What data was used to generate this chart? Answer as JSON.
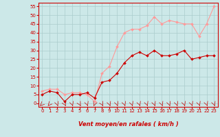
{
  "x": [
    0,
    1,
    2,
    3,
    4,
    5,
    6,
    7,
    8,
    9,
    10,
    11,
    12,
    13,
    14,
    15,
    16,
    17,
    18,
    19,
    20,
    21,
    22,
    23
  ],
  "wind_avg": [
    5,
    7,
    6,
    1,
    5,
    5,
    6,
    3,
    12,
    13,
    17,
    23,
    27,
    29,
    27,
    30,
    27,
    27,
    28,
    30,
    25,
    26,
    27,
    27
  ],
  "wind_gust": [
    7,
    8,
    8,
    5,
    6,
    6,
    5,
    1,
    17,
    21,
    32,
    40,
    42,
    42,
    44,
    49,
    45,
    47,
    46,
    45,
    45,
    38,
    45,
    55
  ],
  "avg_color": "#cc0000",
  "gust_color": "#ff9999",
  "bg_color": "#cce8e8",
  "grid_color": "#aacccc",
  "xlabel": "Vent moyen/en rafales ( km/h )",
  "xlabel_color": "#cc0000",
  "yticks": [
    0,
    5,
    10,
    15,
    20,
    25,
    30,
    35,
    40,
    45,
    50,
    55
  ],
  "ylim": [
    -2,
    57
  ],
  "xlim": [
    -0.5,
    23.5
  ],
  "markersize": 2.0,
  "linewidth": 0.8,
  "tick_fontsize": 5.0,
  "xlabel_fontsize": 6.0
}
